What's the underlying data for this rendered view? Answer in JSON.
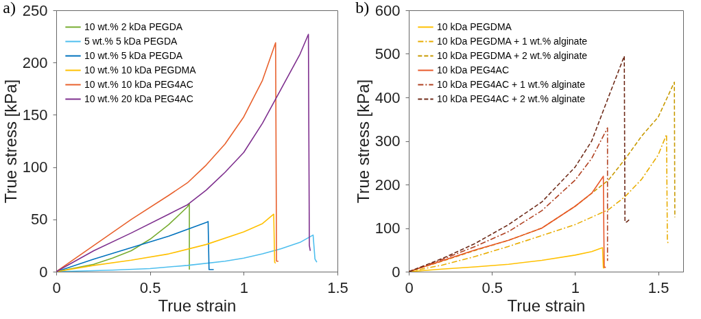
{
  "chart_data": [
    {
      "type": "line",
      "title": "a)",
      "xlabel": "True strain",
      "ylabel": "True stress [kPa]",
      "xlim": [
        0,
        1.5
      ],
      "ylim": [
        0,
        250
      ],
      "xticks": [
        0,
        0.5,
        1,
        1.5
      ],
      "yticks": [
        0,
        50,
        100,
        150,
        200,
        250
      ],
      "legend": "top left",
      "series": [
        {
          "name": "10 wt.% 2 kDa PEGDA",
          "color": "#77ac30",
          "line_style": "solid",
          "x": [
            0,
            0.2,
            0.3,
            0.4,
            0.5,
            0.6,
            0.7,
            0.71,
            0.71
          ],
          "values": [
            0,
            7,
            13,
            20,
            31,
            45,
            62,
            65,
            2
          ]
        },
        {
          "name": "5 wt.% 5 kDa PEGDA",
          "color": "#4dbeee",
          "line_style": "solid",
          "x": [
            0,
            0.3,
            0.5,
            0.7,
            0.9,
            1.0,
            1.1,
            1.2,
            1.3,
            1.37,
            1.38,
            1.39
          ],
          "values": [
            0,
            1.5,
            3,
            6,
            10,
            13,
            17,
            22,
            28,
            35,
            12,
            9
          ]
        },
        {
          "name": "10 wt.% 5 kDa PEGDA",
          "color": "#0072bd",
          "line_style": "solid",
          "x": [
            0,
            0.2,
            0.4,
            0.6,
            0.8,
            0.81,
            0.815,
            0.84
          ],
          "values": [
            0,
            12,
            23,
            34,
            47,
            48,
            2,
            2
          ]
        },
        {
          "name": "10 wt.% 10 kDa PEGDMA",
          "color": "#ffc000",
          "line_style": "solid",
          "x": [
            0,
            0.2,
            0.4,
            0.6,
            0.8,
            1.0,
            1.1,
            1.16,
            1.165,
            1.17
          ],
          "values": [
            0,
            6,
            11,
            17,
            26,
            38,
            46,
            55,
            9,
            8
          ]
        },
        {
          "name": "10 wt.% 10 kDa PEG4AC",
          "color": "#e8602c",
          "line_style": "solid",
          "x": [
            0,
            0.2,
            0.4,
            0.6,
            0.7,
            0.8,
            0.9,
            1.0,
            1.1,
            1.17,
            1.175,
            1.185
          ],
          "values": [
            0,
            25,
            50,
            73,
            85,
            102,
            122,
            148,
            183,
            219,
            10,
            10
          ]
        },
        {
          "name": "10 wt.% 20 kDa PEG4AC",
          "color": "#7e2f8e",
          "line_style": "solid",
          "x": [
            0,
            0.2,
            0.4,
            0.6,
            0.7,
            0.8,
            0.9,
            1.0,
            1.1,
            1.2,
            1.3,
            1.345,
            1.35,
            1.355
          ],
          "values": [
            0,
            20,
            37,
            55,
            64,
            78,
            95,
            114,
            142,
            175,
            208,
            227,
            25,
            20
          ]
        }
      ]
    },
    {
      "type": "line",
      "title": "b)",
      "xlabel": "True strain",
      "ylabel": "True stress [kPa]",
      "xlim": [
        0,
        1.65
      ],
      "ylim": [
        0,
        600
      ],
      "xticks": [
        0,
        0.5,
        1,
        1.5
      ],
      "yticks": [
        0,
        100,
        200,
        300,
        400,
        500,
        600
      ],
      "legend": "top left",
      "series": [
        {
          "name": "10 kDa PEGDMA",
          "color": "#ffc000",
          "line_style": "solid",
          "x": [
            0,
            0.2,
            0.4,
            0.6,
            0.8,
            1.0,
            1.1,
            1.165,
            1.17,
            1.175
          ],
          "values": [
            0,
            6,
            11,
            17,
            26,
            38,
            46,
            55,
            9,
            8
          ]
        },
        {
          "name": "10 kDa PEGDMA + 1 wt.% alginate",
          "color": "#e8ac00",
          "line_style": "dashdot",
          "x": [
            0,
            0.2,
            0.4,
            0.6,
            0.8,
            1.0,
            1.2,
            1.3,
            1.4,
            1.5,
            1.55,
            1.555,
            1.56
          ],
          "values": [
            0,
            15,
            35,
            58,
            83,
            108,
            142,
            172,
            212,
            268,
            315,
            70,
            65
          ]
        },
        {
          "name": "10 kDa PEGDMA + 2 wt.% alginate",
          "color": "#c89a00",
          "line_style": "dashed",
          "x": [
            0,
            0.2,
            0.4,
            0.6,
            0.8,
            1.0,
            1.2,
            1.3,
            1.4,
            1.5,
            1.597,
            1.6
          ],
          "values": [
            0,
            24,
            49,
            72,
            100,
            150,
            210,
            258,
            311,
            355,
            435,
            125
          ]
        },
        {
          "name": "10 kDa PEG4AC",
          "color": "#e8582a",
          "line_style": "solid",
          "x": [
            0,
            0.2,
            0.4,
            0.6,
            0.8,
            1.0,
            1.1,
            1.17,
            1.175,
            1.185
          ],
          "values": [
            0,
            25,
            50,
            72,
            100,
            150,
            180,
            219,
            10,
            10
          ]
        },
        {
          "name": "10 kDa PEG4AC + 1 wt.% alginate",
          "color": "#b04020",
          "line_style": "dashdot",
          "x": [
            0,
            0.2,
            0.4,
            0.6,
            0.8,
            1.0,
            1.1,
            1.195,
            1.195
          ],
          "values": [
            0,
            28,
            58,
            92,
            140,
            210,
            260,
            330,
            25
          ]
        },
        {
          "name": "10 kDa PEG4AC + 2 wt.% alginate",
          "color": "#6e2a18",
          "line_style": "dashed",
          "x": [
            0,
            0.2,
            0.4,
            0.6,
            0.8,
            1.0,
            1.1,
            1.2,
            1.296,
            1.3,
            1.31,
            1.325
          ],
          "values": [
            0,
            30,
            65,
            108,
            160,
            240,
            300,
            400,
            495,
            114,
            114,
            119
          ]
        }
      ]
    }
  ]
}
